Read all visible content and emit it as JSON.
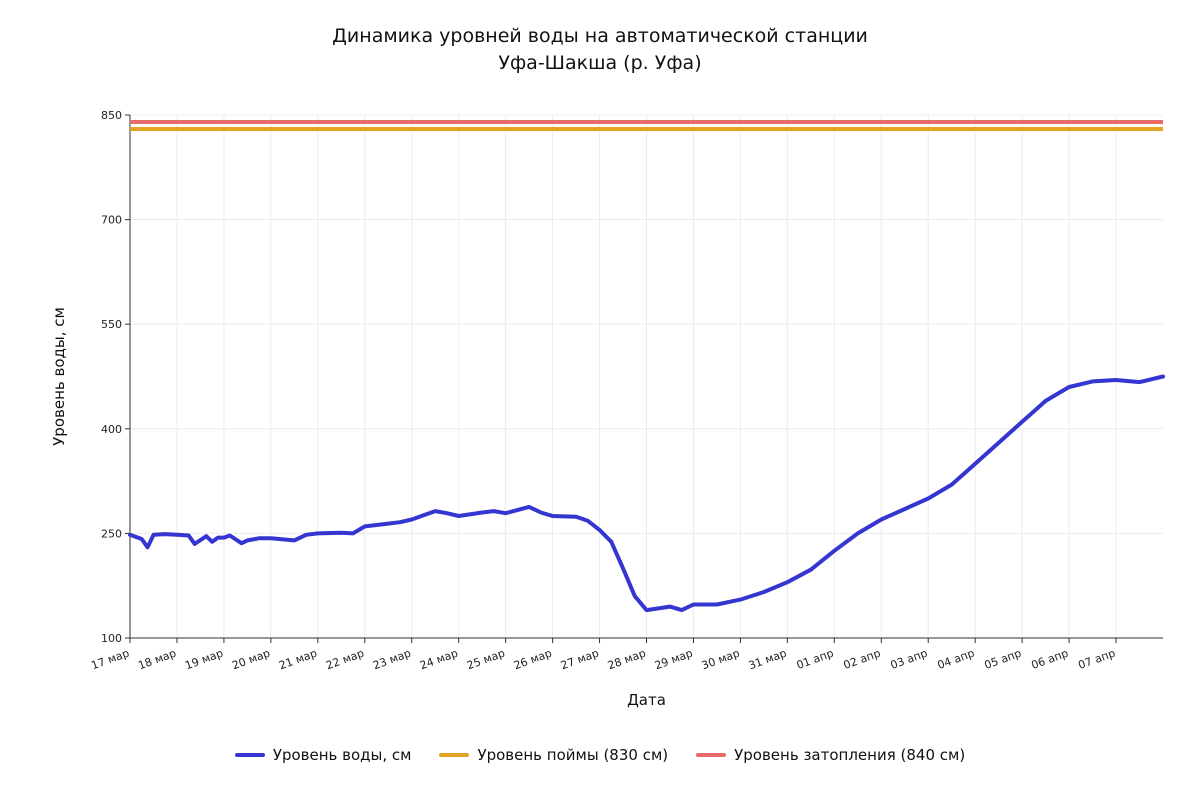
{
  "chart_data": {
    "type": "line",
    "title": "Динамика уровней воды на автоматической станции",
    "subtitle": "Уфа-Шакша (р. Уфа)",
    "xlabel": "Дата",
    "ylabel": "Уровень воды, см",
    "ylim": [
      100,
      850
    ],
    "yticks": [
      100,
      250,
      400,
      550,
      700,
      850
    ],
    "xlim": [
      "2022-03-17",
      "2022-04-08"
    ],
    "xticks": [
      "17 мар",
      "18 мар",
      "19 мар",
      "20 мар",
      "21 мар",
      "22 мар",
      "23 мар",
      "24 мар",
      "25 мар",
      "26 мар",
      "27 мар",
      "28 мар",
      "29 мар",
      "30 мар",
      "31 мар",
      "01 апр",
      "02 апр",
      "03 апр",
      "04 апр",
      "05 апр",
      "06 апр",
      "07 апр"
    ],
    "grid": true,
    "legend_position": "bottom",
    "series": [
      {
        "name": "Уровень воды, см",
        "color": "#3535d1",
        "x": [
          "2022-03-17 00:00",
          "2022-03-17 06:00",
          "2022-03-17 09:00",
          "2022-03-17 12:00",
          "2022-03-17 18:00",
          "2022-03-18 00:00",
          "2022-03-18 06:00",
          "2022-03-18 09:00",
          "2022-03-18 15:00",
          "2022-03-18 18:00",
          "2022-03-18 21:00",
          "2022-03-19 00:00",
          "2022-03-19 03:00",
          "2022-03-19 09:00",
          "2022-03-19 12:00",
          "2022-03-19 18:00",
          "2022-03-20 00:00",
          "2022-03-20 12:00",
          "2022-03-20 18:00",
          "2022-03-21 00:00",
          "2022-03-21 12:00",
          "2022-03-21 18:00",
          "2022-03-22 00:00",
          "2022-03-22 12:00",
          "2022-03-22 18:00",
          "2022-03-23 00:00",
          "2022-03-23 12:00",
          "2022-03-23 18:00",
          "2022-03-24 00:00",
          "2022-03-24 12:00",
          "2022-03-24 18:00",
          "2022-03-25 00:00",
          "2022-03-25 12:00",
          "2022-03-25 18:00",
          "2022-03-26 00:00",
          "2022-03-26 12:00",
          "2022-03-26 18:00",
          "2022-03-27 00:00",
          "2022-03-27 06:00",
          "2022-03-27 12:00",
          "2022-03-27 18:00",
          "2022-03-28 00:00",
          "2022-03-28 12:00",
          "2022-03-28 18:00",
          "2022-03-29 00:00",
          "2022-03-29 12:00",
          "2022-03-30 00:00",
          "2022-03-30 12:00",
          "2022-03-31 00:00",
          "2022-03-31 12:00",
          "2022-04-01 00:00",
          "2022-04-01 12:00",
          "2022-04-02 00:00",
          "2022-04-02 12:00",
          "2022-04-03 00:00",
          "2022-04-03 12:00",
          "2022-04-04 00:00",
          "2022-04-04 12:00",
          "2022-04-05 00:00",
          "2022-04-05 06:00",
          "2022-04-05 12:00",
          "2022-04-05 18:00",
          "2022-04-06 00:00",
          "2022-04-06 12:00",
          "2022-04-07 00:00",
          "2022-04-07 12:00",
          "2022-04-08 00:00"
        ],
        "values": [
          248,
          242,
          230,
          248,
          249,
          248,
          247,
          235,
          246,
          238,
          244,
          244,
          247,
          236,
          240,
          243,
          243,
          240,
          248,
          250,
          251,
          250,
          260,
          264,
          266,
          270,
          282,
          279,
          275,
          280,
          282,
          279,
          288,
          280,
          275,
          274,
          268,
          255,
          238,
          200,
          160,
          140,
          145,
          140,
          148,
          148,
          155,
          166,
          180,
          198,
          225,
          250,
          270,
          285,
          300,
          320,
          350,
          380,
          410,
          425,
          440,
          450,
          460,
          468,
          470,
          467,
          475
        ]
      },
      {
        "name": "Уровень поймы (830 см)",
        "color": "#e6a323",
        "values": [
          830,
          830
        ]
      },
      {
        "name": "Уровень затопления (840 см)",
        "color": "#e86b6b",
        "values": [
          840,
          840
        ]
      }
    ]
  }
}
